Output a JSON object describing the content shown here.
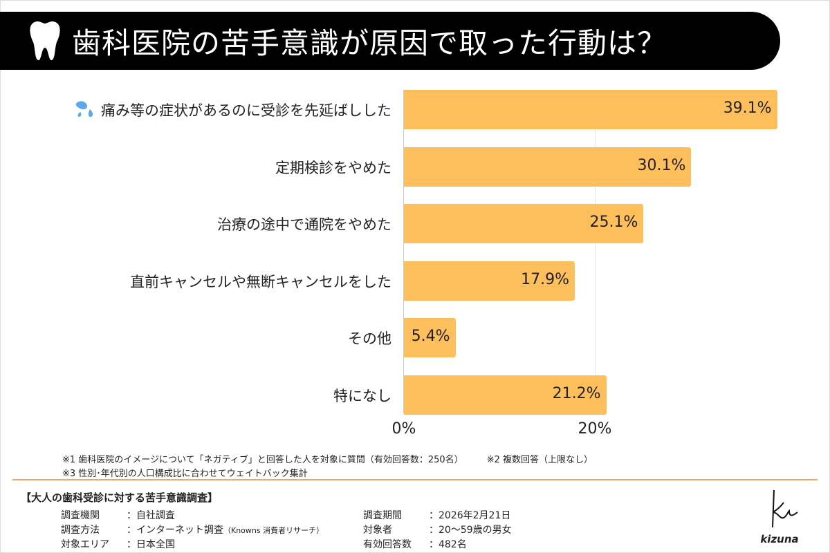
{
  "title": "歯科医院の苦手意識が原因で取った行動は？",
  "colors": {
    "bar": "#FDBE5C",
    "title_bg": "#000000",
    "divider": "#F2A56B",
    "drop_icon": "#5AA9EC"
  },
  "chart_data": {
    "type": "bar",
    "orientation": "horizontal",
    "categories": [
      "痛み等の症状があるのに受診を先延ばしした",
      "定期検診をやめた",
      "治療の途中で通院をやめた",
      "直前キャンセルや無断キャンセルをした",
      "その他",
      "特になし"
    ],
    "values": [
      39.1,
      30.1,
      25.1,
      17.9,
      5.4,
      21.2
    ],
    "value_labels": [
      "39.1%",
      "30.1%",
      "25.1%",
      "17.9%",
      "5.4%",
      "21.2%"
    ],
    "xticks": [
      "0%",
      "20%"
    ],
    "xlim": [
      0,
      40
    ],
    "grid": true
  },
  "notes": [
    "※1 歯科医院のイメージについて「ネガティブ」と回答した人を対象に質問（有効回答数：250名）",
    "※2 複数回答（上限なし）",
    "※3 性別･年代別の人口構成比に合わせてウェイトバック集計"
  ],
  "survey": {
    "title": "【大人の歯科受診に対する苦手意識調査】",
    "left": [
      {
        "k": "調査機関",
        "v": "：自社調査"
      },
      {
        "k": "調査方法",
        "v": "：インターネット調査",
        "sub": "（Knowns 消費者リサーチ）"
      },
      {
        "k": "対象エリア",
        "v": "：日本全国"
      }
    ],
    "right": [
      {
        "k": "調査期間",
        "v": "：2026年2月21日"
      },
      {
        "k": "対象者",
        "v": "：20～59歳の男女"
      },
      {
        "k": "有効回答数",
        "v": "：482名"
      }
    ]
  },
  "logo": "kizuna"
}
